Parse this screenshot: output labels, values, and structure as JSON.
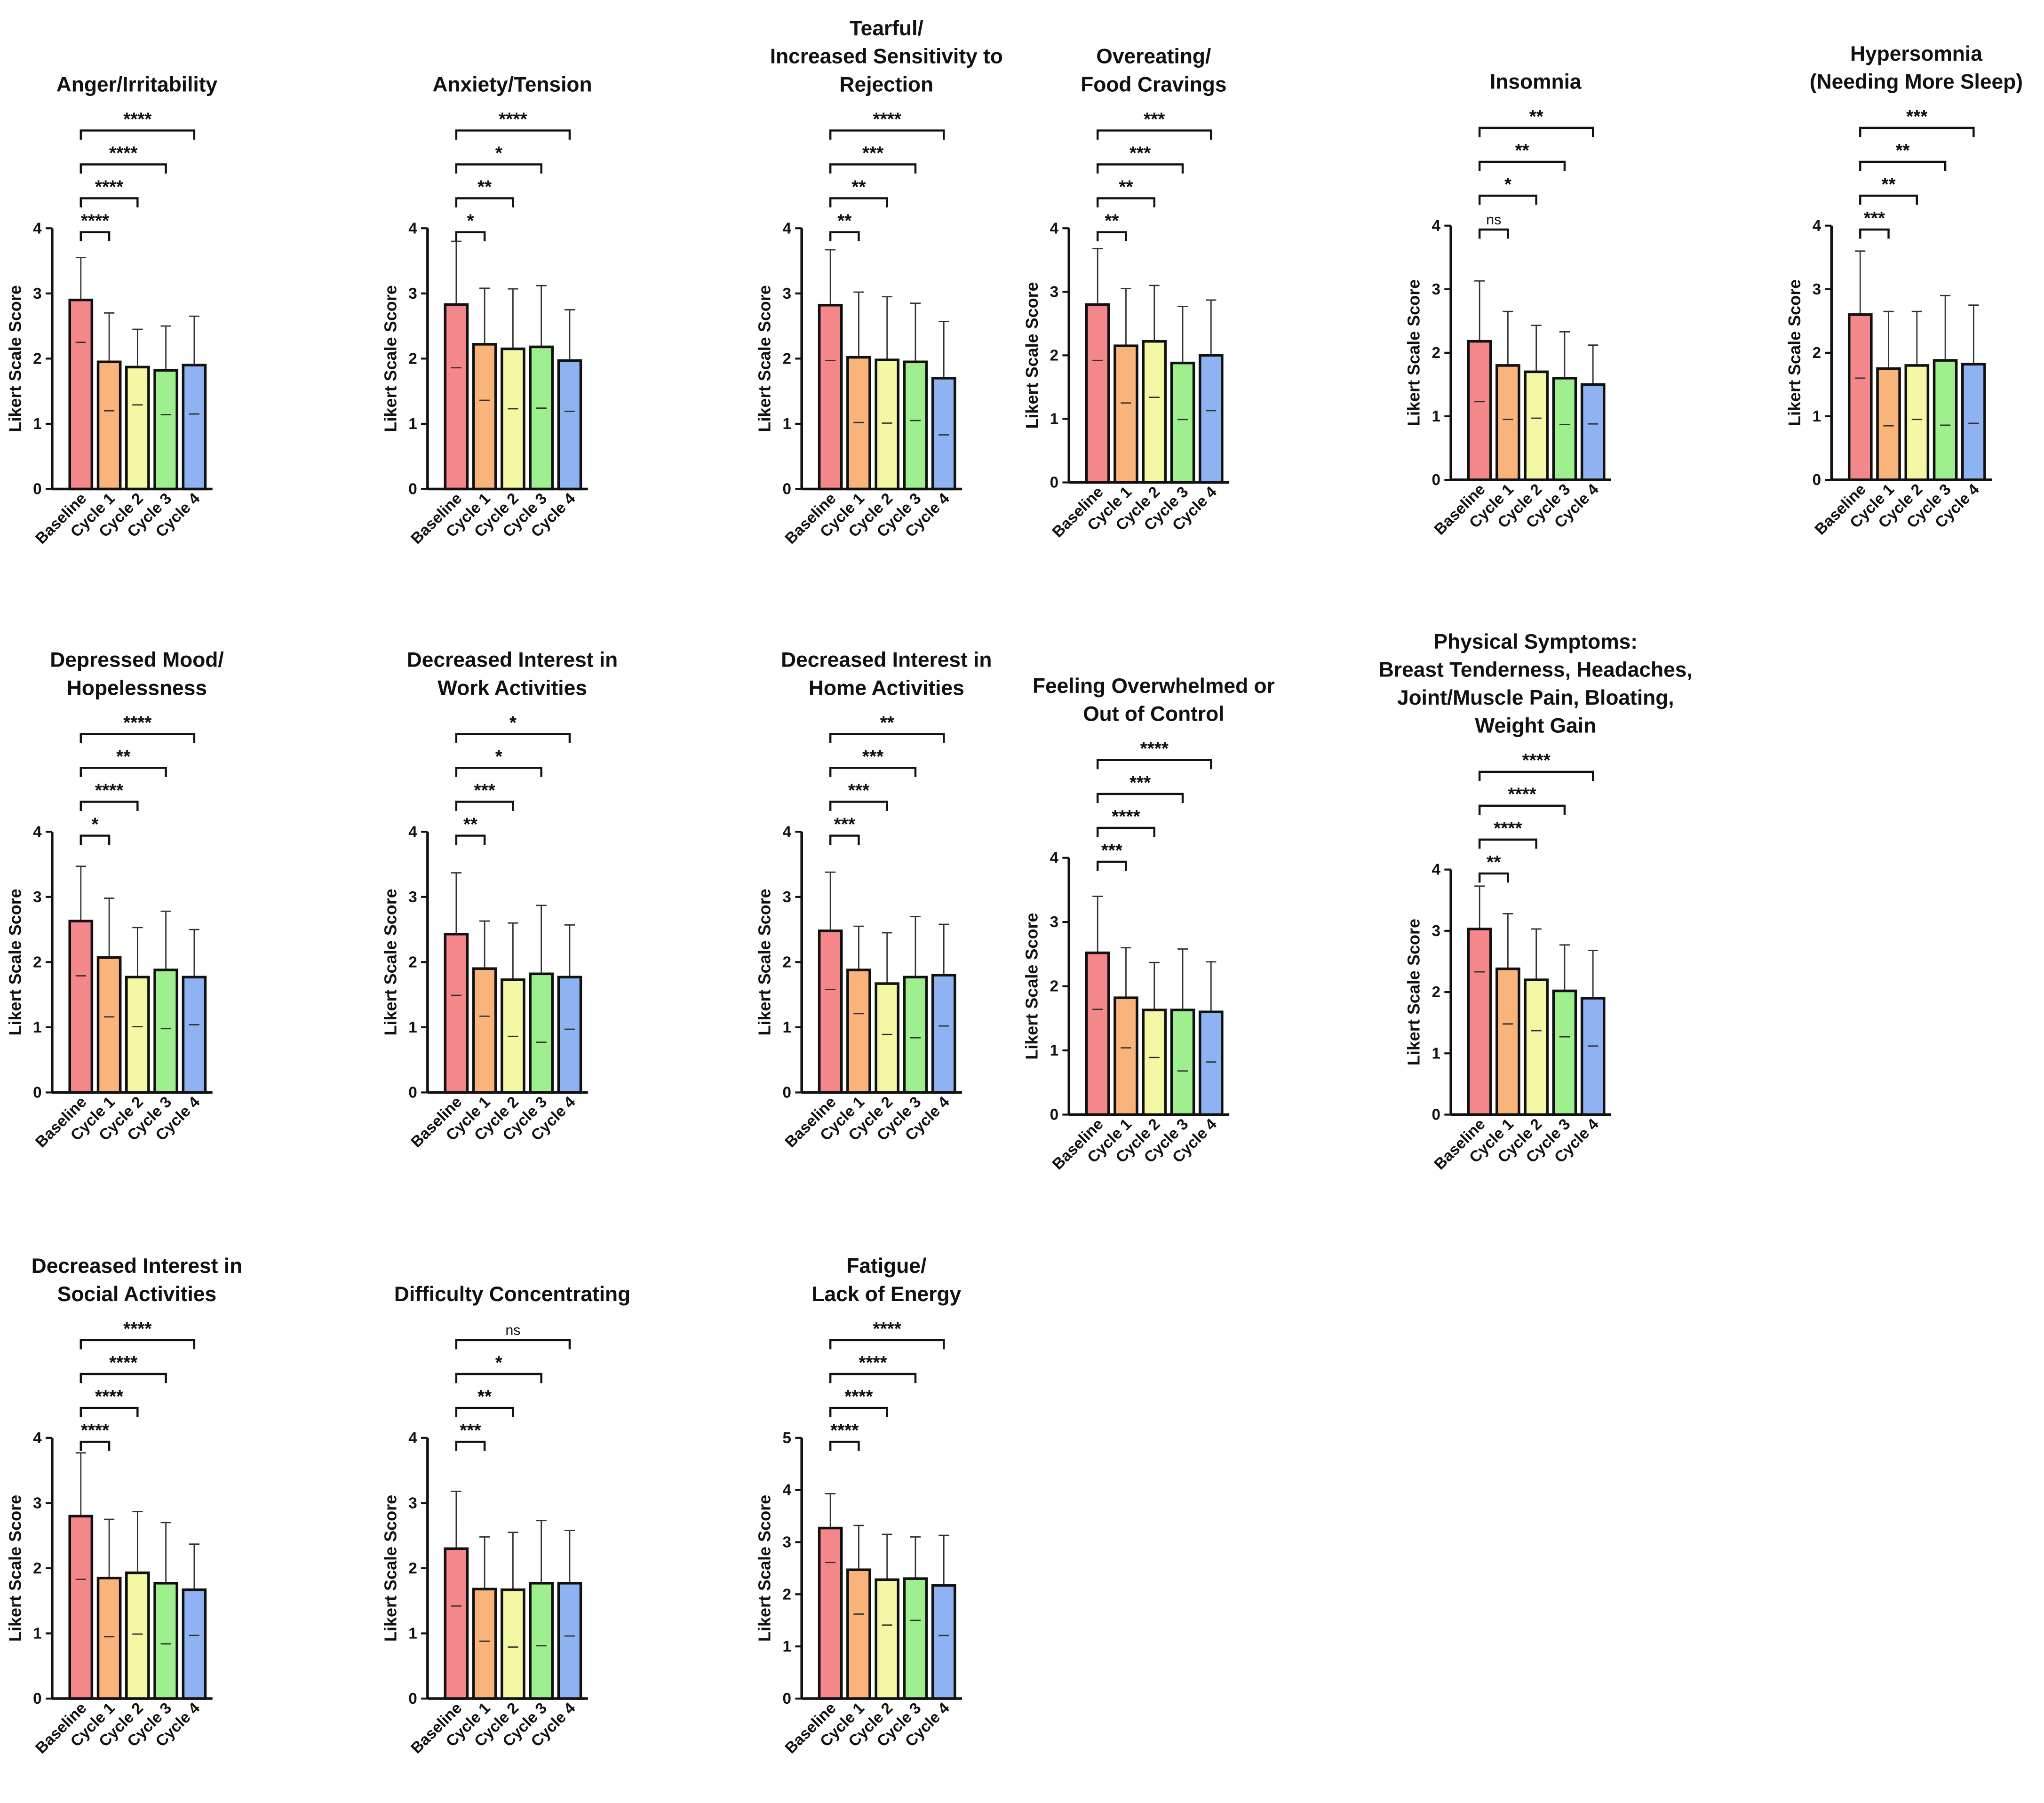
{
  "chart_data": [
    {
      "type": "bar",
      "title": [
        "Anger/Irritability"
      ],
      "y_label": "Likert Scale Score",
      "categories": [
        "Baseline",
        "Cycle 1",
        "Cycle 2",
        "Cycle 3",
        "Cycle 4"
      ],
      "values": [
        2.9,
        1.95,
        1.87,
        1.82,
        1.9
      ],
      "errors": [
        0.65,
        0.75,
        0.58,
        0.68,
        0.75
      ],
      "colors": [
        "#f4878a",
        "#f9b47c",
        "#f4f7a4",
        "#9ef08f",
        "#8fb3f2"
      ],
      "ylim": [
        0,
        4
      ],
      "yticks": [
        0,
        1,
        2,
        3,
        4
      ],
      "significance": [
        "****",
        "****",
        "****",
        "****"
      ]
    },
    {
      "type": "bar",
      "title": [
        "Anxiety/Tension"
      ],
      "y_label": "Likert Scale Score",
      "categories": [
        "Baseline",
        "Cycle 1",
        "Cycle 2",
        "Cycle 3",
        "Cycle 4"
      ],
      "values": [
        2.83,
        2.22,
        2.15,
        2.18,
        1.97
      ],
      "errors": [
        0.97,
        0.86,
        0.92,
        0.94,
        0.78
      ],
      "colors": [
        "#f4878a",
        "#f9b47c",
        "#f4f7a4",
        "#9ef08f",
        "#8fb3f2"
      ],
      "ylim": [
        0,
        4
      ],
      "yticks": [
        0,
        1,
        2,
        3,
        4
      ],
      "significance": [
        "*",
        "**",
        "*",
        "****"
      ]
    },
    {
      "type": "bar",
      "title": [
        "Tearful/",
        "Increased Sensitivity to",
        "Rejection"
      ],
      "y_label": "Likert Scale Score",
      "categories": [
        "Baseline",
        "Cycle 1",
        "Cycle 2",
        "Cycle 3",
        "Cycle 4"
      ],
      "values": [
        2.82,
        2.02,
        1.98,
        1.95,
        1.7
      ],
      "errors": [
        0.85,
        1.0,
        0.97,
        0.9,
        0.87
      ],
      "colors": [
        "#f4878a",
        "#f9b47c",
        "#f4f7a4",
        "#9ef08f",
        "#8fb3f2"
      ],
      "ylim": [
        0,
        4
      ],
      "yticks": [
        0,
        1,
        2,
        3,
        4
      ],
      "significance": [
        "**",
        "**",
        "***",
        "****"
      ]
    },
    {
      "type": "bar",
      "title": [
        "Overeating/",
        "Food Cravings"
      ],
      "y_label": "Likert Scale Score",
      "categories": [
        "Baseline",
        "Cycle 1",
        "Cycle 2",
        "Cycle 3",
        "Cycle 4"
      ],
      "values": [
        2.8,
        2.15,
        2.22,
        1.88,
        2.0
      ],
      "errors": [
        0.88,
        0.9,
        0.88,
        0.89,
        0.87
      ],
      "colors": [
        "#f4878a",
        "#f9b47c",
        "#f4f7a4",
        "#9ef08f",
        "#8fb3f2"
      ],
      "ylim": [
        0,
        4
      ],
      "yticks": [
        0,
        1,
        2,
        3,
        4
      ],
      "significance": [
        "**",
        "**",
        "***",
        "***"
      ]
    },
    {
      "type": "bar",
      "title": [
        "Insomnia"
      ],
      "y_label": "Likert Scale Score",
      "categories": [
        "Baseline",
        "Cycle 1",
        "Cycle 2",
        "Cycle 3",
        "Cycle 4"
      ],
      "values": [
        2.18,
        1.8,
        1.7,
        1.6,
        1.5
      ],
      "errors": [
        0.95,
        0.85,
        0.73,
        0.73,
        0.62
      ],
      "colors": [
        "#f4878a",
        "#f9b47c",
        "#f4f7a4",
        "#9ef08f",
        "#8fb3f2"
      ],
      "ylim": [
        0,
        4
      ],
      "yticks": [
        0,
        1,
        2,
        3,
        4
      ],
      "significance": [
        "ns",
        "*",
        "**",
        "**"
      ]
    },
    {
      "type": "bar",
      "title": [
        "Hypersomnia",
        "(Needing More Sleep)"
      ],
      "y_label": "Likert Scale Score",
      "categories": [
        "Baseline",
        "Cycle 1",
        "Cycle 2",
        "Cycle 3",
        "Cycle 4"
      ],
      "values": [
        2.6,
        1.75,
        1.8,
        1.88,
        1.82
      ],
      "errors": [
        1.0,
        0.9,
        0.85,
        1.02,
        0.93
      ],
      "colors": [
        "#f4878a",
        "#f9b47c",
        "#f4f7a4",
        "#9ef08f",
        "#8fb3f2"
      ],
      "ylim": [
        0,
        4
      ],
      "yticks": [
        0,
        1,
        2,
        3,
        4
      ],
      "significance": [
        "***",
        "**",
        "**",
        "***"
      ]
    },
    {
      "type": "bar",
      "title": [
        "Depressed Mood/",
        "Hopelessness"
      ],
      "y_label": "Likert Scale Score",
      "categories": [
        "Baseline",
        "Cycle 1",
        "Cycle 2",
        "Cycle 3",
        "Cycle 4"
      ],
      "values": [
        2.63,
        2.07,
        1.77,
        1.88,
        1.77
      ],
      "errors": [
        0.84,
        0.91,
        0.76,
        0.9,
        0.73
      ],
      "colors": [
        "#f4878a",
        "#f9b47c",
        "#f4f7a4",
        "#9ef08f",
        "#8fb3f2"
      ],
      "ylim": [
        0,
        4
      ],
      "yticks": [
        0,
        1,
        2,
        3,
        4
      ],
      "significance": [
        "*",
        "****",
        "**",
        "****"
      ]
    },
    {
      "type": "bar",
      "title": [
        "Decreased Interest in",
        "Work Activities"
      ],
      "y_label": "Likert Scale Score",
      "categories": [
        "Baseline",
        "Cycle 1",
        "Cycle 2",
        "Cycle 3",
        "Cycle 4"
      ],
      "values": [
        2.43,
        1.9,
        1.73,
        1.82,
        1.77
      ],
      "errors": [
        0.94,
        0.73,
        0.87,
        1.05,
        0.8
      ],
      "colors": [
        "#f4878a",
        "#f9b47c",
        "#f4f7a4",
        "#9ef08f",
        "#8fb3f2"
      ],
      "ylim": [
        0,
        4
      ],
      "yticks": [
        0,
        1,
        2,
        3,
        4
      ],
      "significance": [
        "**",
        "***",
        "*",
        "*"
      ]
    },
    {
      "type": "bar",
      "title": [
        "Decreased Interest in",
        "Home Activities"
      ],
      "y_label": "Likert Scale Score",
      "categories": [
        "Baseline",
        "Cycle 1",
        "Cycle 2",
        "Cycle 3",
        "Cycle 4"
      ],
      "values": [
        2.48,
        1.88,
        1.67,
        1.77,
        1.8
      ],
      "errors": [
        0.9,
        0.67,
        0.78,
        0.93,
        0.78
      ],
      "colors": [
        "#f4878a",
        "#f9b47c",
        "#f4f7a4",
        "#9ef08f",
        "#8fb3f2"
      ],
      "ylim": [
        0,
        4
      ],
      "yticks": [
        0,
        1,
        2,
        3,
        4
      ],
      "significance": [
        "***",
        "***",
        "***",
        "**"
      ]
    },
    {
      "type": "bar",
      "title": [
        "Feeling Overwhelmed or",
        "Out of Control"
      ],
      "y_label": "Likert Scale Score",
      "categories": [
        "Baseline",
        "Cycle 1",
        "Cycle 2",
        "Cycle 3",
        "Cycle 4"
      ],
      "values": [
        2.52,
        1.82,
        1.63,
        1.63,
        1.6
      ],
      "errors": [
        0.88,
        0.78,
        0.74,
        0.95,
        0.78
      ],
      "colors": [
        "#f4878a",
        "#f9b47c",
        "#f4f7a4",
        "#9ef08f",
        "#8fb3f2"
      ],
      "ylim": [
        0,
        4
      ],
      "yticks": [
        0,
        1,
        2,
        3,
        4
      ],
      "significance": [
        "***",
        "****",
        "***",
        "****"
      ]
    },
    {
      "type": "bar",
      "title": [
        "Physical Symptoms:",
        "Breast Tenderness, Headaches,",
        "Joint/Muscle Pain, Bloating,",
        "Weight Gain"
      ],
      "y_label": "Likert Scale Score",
      "categories": [
        "Baseline",
        "Cycle 1",
        "Cycle 2",
        "Cycle 3",
        "Cycle 4"
      ],
      "values": [
        3.03,
        2.38,
        2.2,
        2.02,
        1.9
      ],
      "errors": [
        0.7,
        0.9,
        0.83,
        0.75,
        0.78
      ],
      "colors": [
        "#f4878a",
        "#f9b47c",
        "#f4f7a4",
        "#9ef08f",
        "#8fb3f2"
      ],
      "ylim": [
        0,
        4
      ],
      "yticks": [
        0,
        1,
        2,
        3,
        4
      ],
      "significance": [
        "**",
        "****",
        "****",
        "****"
      ]
    },
    {
      "type": "bar",
      "title": [
        "Decreased Interest in",
        "Social Activities"
      ],
      "y_label": "Likert Scale Score",
      "categories": [
        "Baseline",
        "Cycle 1",
        "Cycle 2",
        "Cycle 3",
        "Cycle 4"
      ],
      "values": [
        2.8,
        1.85,
        1.93,
        1.77,
        1.67
      ],
      "errors": [
        0.97,
        0.9,
        0.94,
        0.93,
        0.7
      ],
      "colors": [
        "#f4878a",
        "#f9b47c",
        "#f4f7a4",
        "#9ef08f",
        "#8fb3f2"
      ],
      "ylim": [
        0,
        4
      ],
      "yticks": [
        0,
        1,
        2,
        3,
        4
      ],
      "significance": [
        "****",
        "****",
        "****",
        "****"
      ]
    },
    {
      "type": "bar",
      "title": [
        "Difficulty Concentrating"
      ],
      "y_label": "Likert Scale Score",
      "categories": [
        "Baseline",
        "Cycle 1",
        "Cycle 2",
        "Cycle 3",
        "Cycle 4"
      ],
      "values": [
        2.3,
        1.68,
        1.67,
        1.77,
        1.77
      ],
      "errors": [
        0.88,
        0.8,
        0.88,
        0.96,
        0.81
      ],
      "colors": [
        "#f4878a",
        "#f9b47c",
        "#f4f7a4",
        "#9ef08f",
        "#8fb3f2"
      ],
      "ylim": [
        0,
        4
      ],
      "yticks": [
        0,
        1,
        2,
        3,
        4
      ],
      "significance": [
        "***",
        "**",
        "*",
        "ns"
      ]
    },
    {
      "type": "bar",
      "title": [
        "Fatigue/",
        "Lack of Energy"
      ],
      "y_label": "Likert Scale Score",
      "categories": [
        "Baseline",
        "Cycle 1",
        "Cycle 2",
        "Cycle 3",
        "Cycle 4"
      ],
      "values": [
        3.27,
        2.47,
        2.28,
        2.3,
        2.17
      ],
      "errors": [
        0.66,
        0.85,
        0.87,
        0.8,
        0.96
      ],
      "colors": [
        "#f4878a",
        "#f9b47c",
        "#f4f7a4",
        "#9ef08f",
        "#8fb3f2"
      ],
      "ylim": [
        0,
        5
      ],
      "yticks": [
        0,
        1,
        2,
        3,
        4,
        5
      ],
      "significance": [
        "****",
        "****",
        "****",
        "****"
      ]
    }
  ]
}
